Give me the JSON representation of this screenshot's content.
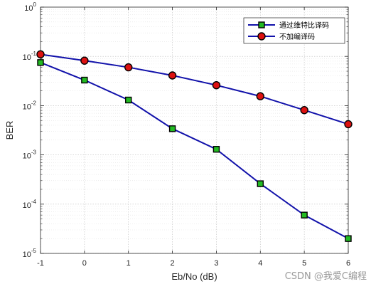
{
  "chart_data": {
    "type": "line",
    "xlabel": "Eb/No (dB)",
    "ylabel": "BER",
    "xlim": [
      -1,
      6
    ],
    "ylim": [
      1e-05,
      1
    ],
    "yscale": "log",
    "grid": true,
    "legend_position": "top-right",
    "x": [
      -1,
      0,
      1,
      2,
      3,
      4,
      5,
      6
    ],
    "x_ticks": [
      "-1",
      "0",
      "1",
      "2",
      "3",
      "4",
      "5",
      "6"
    ],
    "y_ticks": [
      {
        "base": "10",
        "exp": "0"
      },
      {
        "base": "10",
        "exp": "-1"
      },
      {
        "base": "10",
        "exp": "-2"
      },
      {
        "base": "10",
        "exp": "-3"
      },
      {
        "base": "10",
        "exp": "-4"
      },
      {
        "base": "10",
        "exp": "-5"
      }
    ],
    "series": [
      {
        "name": "通过维特比译码",
        "values": [
          0.075,
          0.033,
          0.013,
          0.0034,
          0.0013,
          0.00026,
          6e-05,
          2e-05
        ],
        "line_color": "#1111aa",
        "marker": "square",
        "marker_fill": "#22bb22",
        "marker_edge": "#000000"
      },
      {
        "name": "不加编译码",
        "values": [
          0.11,
          0.082,
          0.06,
          0.041,
          0.026,
          0.0155,
          0.0081,
          0.0042
        ],
        "line_color": "#1111aa",
        "marker": "circle",
        "marker_fill": "#dd1111",
        "marker_edge": "#000000"
      }
    ]
  },
  "watermark": "CSDN @我爱C编程"
}
